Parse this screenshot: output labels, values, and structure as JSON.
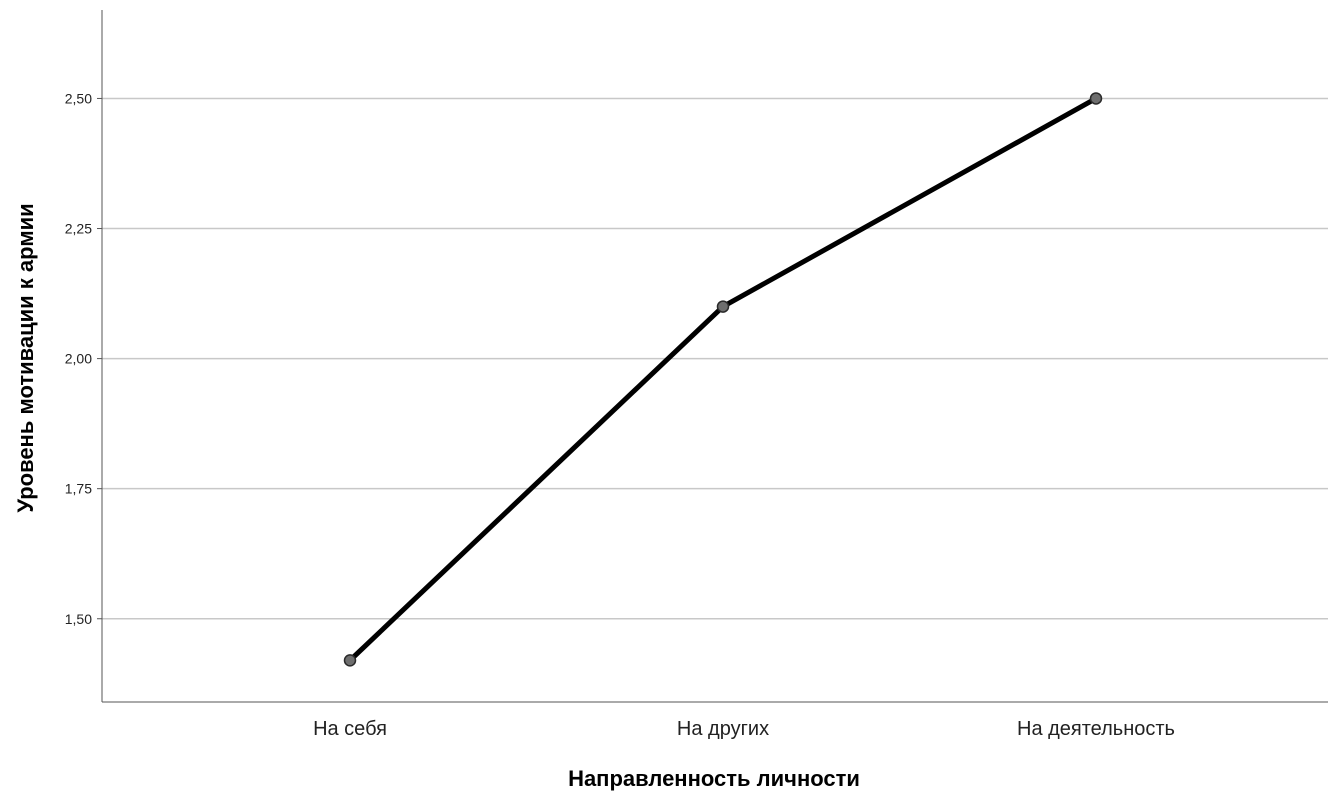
{
  "chart_data": {
    "type": "line",
    "categories": [
      "На себя",
      "На других",
      "На деятельность"
    ],
    "series": [
      {
        "values": [
          1.42,
          2.1,
          2.5
        ]
      }
    ],
    "xlabel": "Направленность личности",
    "ylabel": "Уровень мотивации к армии",
    "yticks": [
      1.5,
      1.75,
      2.0,
      2.25,
      2.5
    ],
    "ytick_labels": [
      "1,50",
      "1,75",
      "2,00",
      "2,25",
      "2,50"
    ],
    "ylim": [
      1.34,
      2.67
    ],
    "grid": "horizontal",
    "legend": "none",
    "colors": {
      "line": "#000000",
      "marker_fill": "#6e6e6e",
      "marker_stroke": "#2a2a2a",
      "grid": "#c8c8c8",
      "axis": "#555555"
    }
  }
}
